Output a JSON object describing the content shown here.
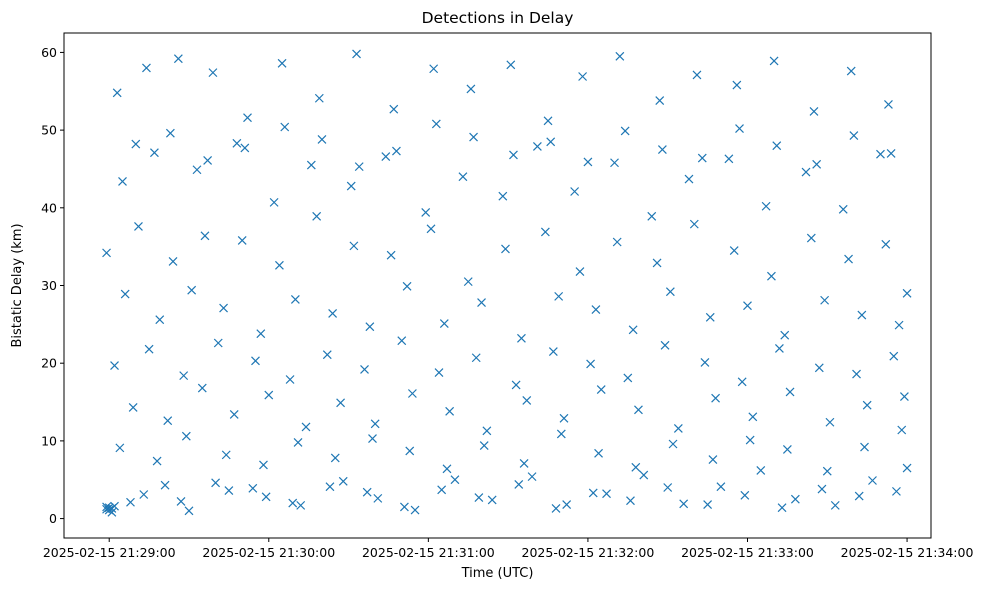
{
  "chart_data": {
    "type": "scatter",
    "title": "Detections in Delay",
    "xlabel": "Time (UTC)",
    "ylabel": "Bistatic Delay (km)",
    "marker": "x",
    "color": "#1f77b4",
    "x_tick_labels": [
      "2025-02-15 21:29:00",
      "2025-02-15 21:30:00",
      "2025-02-15 21:31:00",
      "2025-02-15 21:32:00",
      "2025-02-15 21:33:00",
      "2025-02-15 21:34:00"
    ],
    "y_ticks": [
      0,
      10,
      20,
      30,
      40,
      50,
      60
    ],
    "xlim": [
      "2025-02-15T21:28:43",
      "2025-02-15T21:34:09"
    ],
    "ylim": [
      -2.5,
      62.5
    ],
    "grid": false,
    "series": [
      {
        "x": [
          "2025-02-15T21:28:59",
          "2025-02-15T21:28:59",
          "2025-02-15T21:29:00",
          "2025-02-15T21:29:00",
          "2025-02-15T21:29:01",
          "2025-02-15T21:29:02",
          "2025-02-15T21:29:08",
          "2025-02-15T21:29:21",
          "2025-02-15T21:29:30",
          "2025-02-15T21:29:45",
          "2025-02-15T21:29:59",
          "2025-02-15T21:30:12",
          "2025-02-15T21:30:28",
          "2025-02-15T21:30:41",
          "2025-02-15T21:30:55",
          "2025-02-15T21:31:10",
          "2025-02-15T21:31:24",
          "2025-02-15T21:31:39",
          "2025-02-15T21:31:52",
          "2025-02-15T21:32:07",
          "2025-02-15T21:32:21",
          "2025-02-15T21:32:36",
          "2025-02-15T21:32:50",
          "2025-02-15T21:33:05",
          "2025-02-15T21:33:18",
          "2025-02-15T21:33:33",
          "2025-02-15T21:33:47",
          "2025-02-15T21:34:00",
          "2025-02-15T21:29:03",
          "2025-02-15T21:29:14",
          "2025-02-15T21:29:26",
          "2025-02-15T21:29:39",
          "2025-02-15T21:29:52",
          "2025-02-15T21:30:05",
          "2025-02-15T21:30:19",
          "2025-02-15T21:30:33",
          "2025-02-15T21:30:47",
          "2025-02-15T21:31:02",
          "2025-02-15T21:31:16",
          "2025-02-15T21:31:31",
          "2025-02-15T21:31:45",
          "2025-02-15T21:31:58",
          "2025-02-15T21:32:12",
          "2025-02-15T21:32:27",
          "2025-02-15T21:32:41",
          "2025-02-15T21:32:56",
          "2025-02-15T21:33:10",
          "2025-02-15T21:33:25",
          "2025-02-15T21:33:39",
          "2025-02-15T21:33:53",
          "2025-02-15T21:29:05",
          "2025-02-15T21:29:17",
          "2025-02-15T21:29:33",
          "2025-02-15T21:29:48",
          "2025-02-15T21:30:02",
          "2025-02-15T21:30:16",
          "2025-02-15T21:30:31",
          "2025-02-15T21:30:44",
          "2025-02-15T21:30:59",
          "2025-02-15T21:31:13",
          "2025-02-15T21:31:28",
          "2025-02-15T21:31:41",
          "2025-02-15T21:31:55",
          "2025-02-15T21:32:10",
          "2025-02-15T21:32:24",
          "2025-02-15T21:32:38",
          "2025-02-15T21:32:53",
          "2025-02-15T21:33:07",
          "2025-02-15T21:33:22",
          "2025-02-15T21:33:36",
          "2025-02-15T21:33:50",
          "2025-02-15T21:28:59",
          "2025-02-15T21:29:11",
          "2025-02-15T21:29:24",
          "2025-02-15T21:29:36",
          "2025-02-15T21:29:50",
          "2025-02-15T21:30:04",
          "2025-02-15T21:30:18",
          "2025-02-15T21:30:32",
          "2025-02-15T21:30:46",
          "2025-02-15T21:31:01",
          "2025-02-15T21:31:15",
          "2025-02-15T21:31:29",
          "2025-02-15T21:31:44",
          "2025-02-15T21:31:57",
          "2025-02-15T21:32:11",
          "2025-02-15T21:32:26",
          "2025-02-15T21:32:40",
          "2025-02-15T21:32:55",
          "2025-02-15T21:33:09",
          "2025-02-15T21:33:24",
          "2025-02-15T21:33:38",
          "2025-02-15T21:33:52",
          "2025-02-15T21:34:00",
          "2025-02-15T21:29:06",
          "2025-02-15T21:29:19",
          "2025-02-15T21:29:31",
          "2025-02-15T21:29:43",
          "2025-02-15T21:29:57",
          "2025-02-15T21:30:10",
          "2025-02-15T21:30:24",
          "2025-02-15T21:30:38",
          "2025-02-15T21:30:52",
          "2025-02-15T21:31:06",
          "2025-02-15T21:31:20",
          "2025-02-15T21:31:35",
          "2025-02-15T21:31:49",
          "2025-02-15T21:32:03",
          "2025-02-15T21:32:17",
          "2025-02-15T21:32:31",
          "2025-02-15T21:32:46",
          "2025-02-15T21:33:00",
          "2025-02-15T21:33:14",
          "2025-02-15T21:33:29",
          "2025-02-15T21:33:43",
          "2025-02-15T21:33:57",
          "2025-02-15T21:29:02",
          "2025-02-15T21:29:15",
          "2025-02-15T21:29:28",
          "2025-02-15T21:29:41",
          "2025-02-15T21:29:55",
          "2025-02-15T21:30:08",
          "2025-02-15T21:30:22",
          "2025-02-15T21:30:36",
          "2025-02-15T21:30:50",
          "2025-02-15T21:31:04",
          "2025-02-15T21:31:18",
          "2025-02-15T21:31:33",
          "2025-02-15T21:31:47",
          "2025-02-15T21:32:01",
          "2025-02-15T21:32:15",
          "2025-02-15T21:32:29",
          "2025-02-15T21:32:44",
          "2025-02-15T21:32:58",
          "2025-02-15T21:33:12",
          "2025-02-15T21:33:27",
          "2025-02-15T21:33:41",
          "2025-02-15T21:33:55",
          "2025-02-15T21:29:09",
          "2025-02-15T21:29:22",
          "2025-02-15T21:29:35",
          "2025-02-15T21:29:47",
          "2025-02-15T21:30:00",
          "2025-02-15T21:30:14",
          "2025-02-15T21:30:27",
          "2025-02-15T21:30:40",
          "2025-02-15T21:30:54",
          "2025-02-15T21:31:08",
          "2025-02-15T21:31:22",
          "2025-02-15T21:31:37",
          "2025-02-15T21:31:51",
          "2025-02-15T21:32:05",
          "2025-02-15T21:32:19",
          "2025-02-15T21:32:34",
          "2025-02-15T21:32:48",
          "2025-02-15T21:33:02",
          "2025-02-15T21:33:16",
          "2025-02-15T21:33:31",
          "2025-02-15T21:33:45",
          "2025-02-15T21:33:59",
          "2025-02-15T21:29:04",
          "2025-02-15T21:29:18",
          "2025-02-15T21:29:29",
          "2025-02-15T21:29:44",
          "2025-02-15T21:29:58",
          "2025-02-15T21:30:11",
          "2025-02-15T21:30:25",
          "2025-02-15T21:30:39",
          "2025-02-15T21:30:53",
          "2025-02-15T21:31:07",
          "2025-02-15T21:31:21",
          "2025-02-15T21:31:36",
          "2025-02-15T21:31:50",
          "2025-02-15T21:32:04",
          "2025-02-15T21:32:18",
          "2025-02-15T21:32:32",
          "2025-02-15T21:32:47",
          "2025-02-15T21:33:01",
          "2025-02-15T21:33:15",
          "2025-02-15T21:33:30",
          "2025-02-15T21:33:44",
          "2025-02-15T21:33:58",
          "2025-02-15T21:29:10",
          "2025-02-15T21:29:23",
          "2025-02-15T21:29:37",
          "2025-02-15T21:29:51",
          "2025-02-15T21:30:06",
          "2025-02-15T21:30:20",
          "2025-02-15T21:30:34",
          "2025-02-15T21:30:48",
          "2025-02-15T21:31:03",
          "2025-02-15T21:31:17",
          "2025-02-15T21:31:32",
          "2025-02-15T21:31:46",
          "2025-02-15T21:32:00",
          "2025-02-15T21:32:14",
          "2025-02-15T21:32:28",
          "2025-02-15T21:32:43",
          "2025-02-15T21:32:57",
          "2025-02-15T21:33:11",
          "2025-02-15T21:33:26",
          "2025-02-15T21:33:40",
          "2025-02-15T21:33:54",
          "2025-02-15T21:29:01",
          "2025-02-15T21:29:13",
          "2025-02-15T21:29:27",
          "2025-02-15T21:29:40",
          "2025-02-15T21:29:54",
          "2025-02-15T21:30:09",
          "2025-02-15T21:30:23",
          "2025-02-15T21:30:37",
          "2025-02-15T21:30:51",
          "2025-02-15T21:31:05",
          "2025-02-15T21:31:19",
          "2025-02-15T21:31:34",
          "2025-02-15T21:31:48",
          "2025-02-15T21:32:02",
          "2025-02-15T21:32:16",
          "2025-02-15T21:32:30",
          "2025-02-15T21:32:45",
          "2025-02-15T21:32:59",
          "2025-02-15T21:33:13",
          "2025-02-15T21:33:28",
          "2025-02-15T21:33:42",
          "2025-02-15T21:33:56"
        ],
        "y": [
          1.2,
          1.5,
          1.1,
          1.4,
          1.3,
          1.6,
          2.1,
          4.3,
          1.0,
          3.6,
          2.8,
          1.7,
          4.8,
          2.6,
          1.1,
          5.0,
          2.4,
          5.4,
          1.8,
          3.2,
          5.6,
          1.9,
          4.1,
          6.2,
          2.5,
          1.7,
          4.9,
          6.5,
          54.8,
          58.0,
          59.2,
          57.4,
          51.6,
          58.6,
          54.1,
          59.8,
          52.7,
          57.9,
          55.3,
          58.4,
          51.2,
          56.9,
          59.5,
          53.8,
          57.1,
          55.8,
          58.9,
          52.4,
          57.6,
          53.3,
          43.4,
          47.1,
          44.9,
          48.3,
          40.7,
          45.5,
          42.8,
          46.6,
          39.4,
          44.0,
          41.5,
          47.9,
          42.1,
          45.8,
          38.9,
          43.7,
          46.3,
          40.2,
          44.6,
          39.8,
          46.9,
          34.2,
          37.6,
          33.1,
          36.4,
          35.8,
          32.6,
          38.9,
          35.1,
          33.9,
          37.3,
          30.5,
          34.7,
          36.9,
          31.8,
          35.6,
          32.9,
          37.9,
          34.5,
          31.2,
          36.1,
          33.4,
          35.3,
          29.0,
          28.9,
          25.6,
          29.4,
          27.1,
          23.8,
          28.2,
          26.4,
          24.7,
          29.9,
          25.1,
          27.8,
          23.2,
          28.6,
          26.9,
          24.3,
          29.2,
          25.9,
          27.4,
          23.6,
          28.1,
          26.2,
          24.9,
          19.7,
          21.8,
          18.4,
          22.6,
          20.3,
          17.9,
          21.1,
          19.2,
          22.9,
          18.8,
          20.7,
          17.2,
          21.5,
          19.9,
          18.1,
          22.3,
          20.1,
          17.6,
          21.9,
          19.4,
          18.6,
          20.9,
          14.3,
          12.6,
          16.8,
          13.4,
          15.9,
          11.8,
          14.9,
          12.2,
          16.1,
          13.8,
          11.3,
          15.2,
          12.9,
          16.6,
          14.0,
          11.6,
          15.5,
          13.1,
          16.3,
          12.4,
          14.6,
          15.7,
          9.1,
          7.4,
          10.6,
          8.2,
          6.9,
          9.8,
          7.8,
          10.3,
          8.7,
          6.4,
          9.4,
          7.1,
          10.9,
          8.4,
          6.6,
          9.6,
          7.6,
          10.1,
          8.9,
          6.1,
          9.2,
          11.4,
          48.2,
          49.6,
          46.1,
          47.7,
          50.4,
          48.8,
          45.3,
          47.3,
          50.8,
          49.1,
          46.8,
          48.5,
          45.9,
          49.9,
          47.5,
          46.4,
          50.2,
          48.0,
          45.6,
          49.3,
          47.0,
          0.8,
          3.1,
          2.2,
          4.6,
          3.9,
          2.0,
          4.1,
          3.4,
          1.5,
          3.7,
          2.7,
          4.4,
          1.3,
          3.3,
          2.3,
          4.0,
          1.8,
          3.0,
          1.4,
          3.8,
          2.9,
          3.5
        ]
      }
    ]
  }
}
